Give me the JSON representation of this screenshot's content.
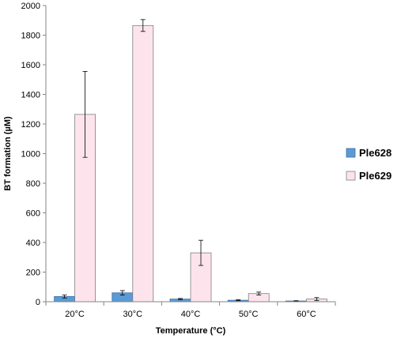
{
  "chart_data": {
    "type": "bar",
    "categories": [
      "20°C",
      "30°C",
      "40°C",
      "50°C",
      "60°C"
    ],
    "series": [
      {
        "name": "Ple628",
        "color": "#5b9bd5",
        "values": [
          35,
          60,
          18,
          10,
          5
        ],
        "errors": [
          10,
          15,
          4,
          3,
          2
        ]
      },
      {
        "name": "Ple629",
        "color": "#fde4ec",
        "values": [
          1265,
          1865,
          330,
          55,
          18
        ],
        "errors": [
          290,
          40,
          85,
          10,
          10
        ]
      }
    ],
    "xlabel": "Temperature (°C)",
    "ylabel": "BT formation (µM)",
    "ylim": [
      0,
      2000
    ],
    "yticks": [
      0,
      200,
      400,
      600,
      800,
      1000,
      1200,
      1400,
      1600,
      1800,
      2000
    ],
    "grid": false,
    "legend_position": "right"
  }
}
